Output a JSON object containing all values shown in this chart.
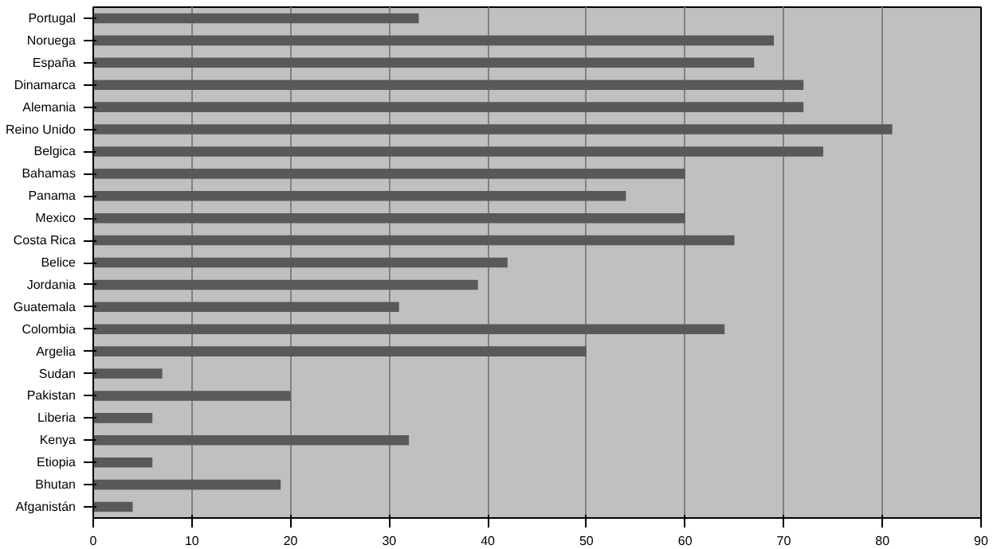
{
  "chart_data": {
    "type": "bar",
    "orientation": "horizontal",
    "categories": [
      "Portugal",
      "Noruega",
      "España",
      "Dinamarca",
      "Alemania",
      "Reino Unido",
      "Belgica",
      "Bahamas",
      "Panama",
      "Mexico",
      "Costa Rica",
      "Belice",
      "Jordania",
      "Guatemala",
      "Colombia",
      "Argelia",
      "Sudan",
      "Pakistan",
      "Liberia",
      "Kenya",
      "Etiopia",
      "Bhutan",
      "Afganistán"
    ],
    "values": [
      33,
      69,
      67,
      72,
      72,
      81,
      74,
      60,
      54,
      60,
      65,
      42,
      39,
      31,
      64,
      50,
      7,
      20,
      6,
      32,
      6,
      19,
      4
    ],
    "color": "#595959",
    "xlim": [
      0,
      90
    ],
    "xticks": [
      0,
      10,
      20,
      30,
      40,
      50,
      60,
      70,
      80,
      90
    ],
    "grid": "x"
  }
}
